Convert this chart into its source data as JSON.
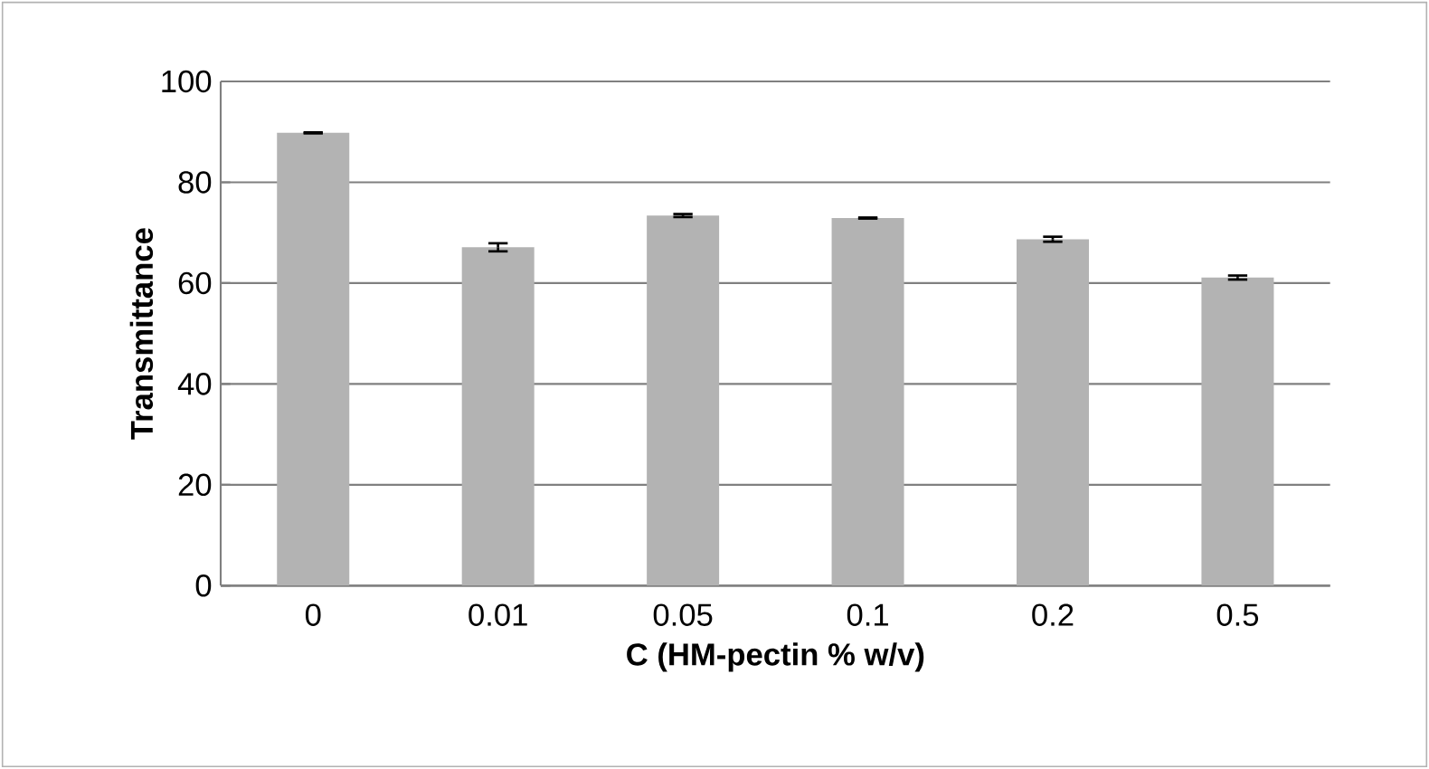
{
  "chart_data": {
    "type": "bar",
    "xlabel": "C (HM-pectin % w/v)",
    "ylabel": "Transmittance",
    "categories": [
      "0",
      "0.01",
      "0.05",
      "0.1",
      "0.2",
      "0.5"
    ],
    "values": [
      89.8,
      67.1,
      73.4,
      72.9,
      68.7,
      61.1
    ],
    "errors": [
      0.1,
      0.8,
      0.3,
      0.1,
      0.5,
      0.4
    ],
    "color": "#b3b3b3",
    "ylim": [
      0,
      100
    ],
    "yticks": [
      0,
      20,
      40,
      60,
      80,
      100
    ],
    "grid": "y"
  }
}
